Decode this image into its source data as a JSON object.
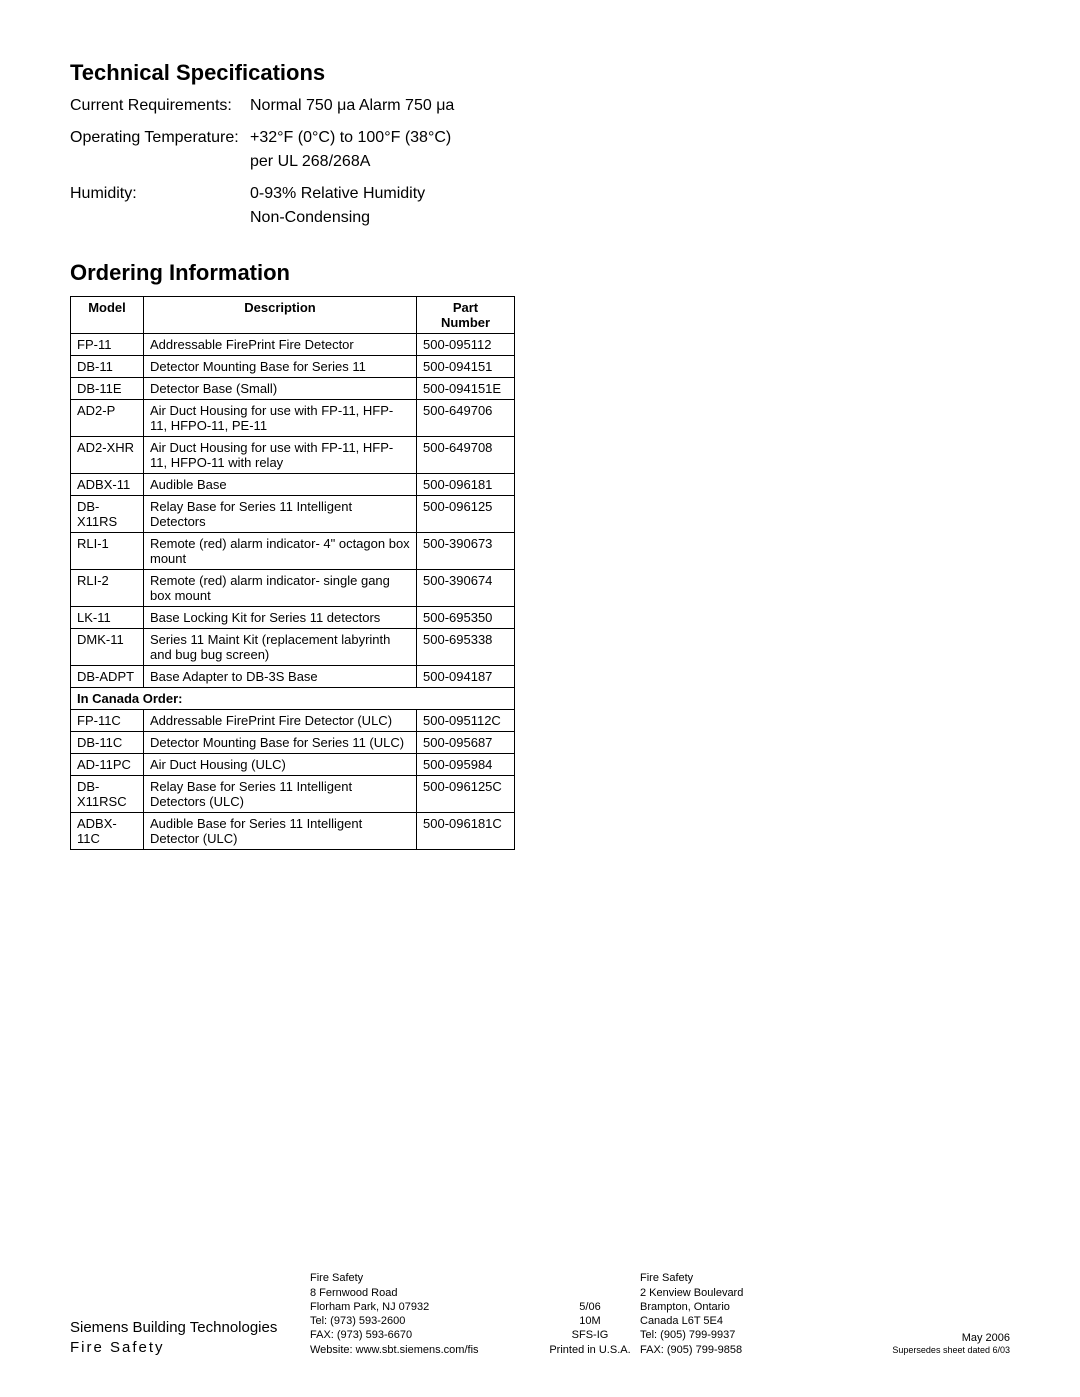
{
  "tech_specs": {
    "heading": "Technical Specifications",
    "rows": [
      {
        "label": "Current Requirements:",
        "value": "Normal  750 μa Alarm 750 μa"
      },
      {
        "label": "Operating Temperature:",
        "value": "+32°F (0°C) to 100°F (38°C)\nper UL 268/268A"
      },
      {
        "label": "Humidity:",
        "value": "0-93% Relative Humidity\nNon-Condensing"
      }
    ]
  },
  "ordering": {
    "heading": "Ordering Information",
    "columns": [
      "Model",
      "Description",
      "Part\nNumber"
    ],
    "rows": [
      {
        "model": "FP-11",
        "desc": "Addressable FirePrint Fire Detector",
        "part": "500-095112"
      },
      {
        "model": "DB-11",
        "desc": "Detector Mounting Base for Series 11",
        "part": "500-094151"
      },
      {
        "model": "DB-11E",
        "desc": "Detector Base (Small)",
        "part": "500-094151E"
      },
      {
        "model": "AD2-P",
        "desc": "Air Duct Housing for use with FP-11, HFP-11, HFPO-11, PE-11",
        "part": "500-649706"
      },
      {
        "model": "AD2-XHR",
        "desc": "Air Duct Housing for use with FP-11, HFP-11, HFPO-11 with relay",
        "part": "500-649708"
      },
      {
        "model": "ADBX-11",
        "desc": "Audible Base",
        "part": "500-096181"
      },
      {
        "model": "DB-X11RS",
        "desc": "Relay Base for Series 11 Intelligent Detectors",
        "part": "500-096125"
      },
      {
        "model": "RLI-1",
        "desc": "Remote (red) alarm indicator- 4\" octagon box mount",
        "part": "500-390673"
      },
      {
        "model": "RLI-2",
        "desc": "Remote (red) alarm indicator- single gang box mount",
        "part": "500-390674"
      },
      {
        "model": "LK-11",
        "desc": "Base Locking Kit for Series 11 detectors",
        "part": "500-695350"
      },
      {
        "model": "DMK-11",
        "desc": "Series 11 Maint Kit (replacement labyrinth and bug bug screen)",
        "part": "500-695338"
      },
      {
        "model": "DB-ADPT",
        "desc": "Base Adapter to DB-3S Base",
        "part": "500-094187"
      }
    ],
    "section_label": "In Canada Order:",
    "rows2": [
      {
        "model": "FP-11C",
        "desc": "Addressable FirePrint Fire Detector (ULC)",
        "part": "500-095112C"
      },
      {
        "model": "DB-11C",
        "desc": "Detector Mounting Base for Series 11 (ULC)",
        "part": "500-095687"
      },
      {
        "model": "AD-11PC",
        "desc": "Air Duct Housing (ULC)",
        "part": "500-095984"
      },
      {
        "model": "DB-X11RSC",
        "desc": "Relay Base for Series 11 Intelligent Detectors (ULC)",
        "part": "500-096125C"
      },
      {
        "model": "ADBX-11C",
        "desc": "Audible Base for Series 11 Intelligent Detector (ULC)",
        "part": "500-096181C"
      }
    ]
  },
  "footer": {
    "company": "Siemens Building Technologies",
    "division": "Fire Safety",
    "addr1": {
      "name": "Fire Safety",
      "street": "8 Fernwood Road",
      "city": "Florham Park, NJ 07932",
      "tel": "Tel: (973) 593-2600",
      "fax": "FAX: (973) 593-6670",
      "web": "Website: www.sbt.siemens.com/fis"
    },
    "mid": {
      "l1": "5/06",
      "l2": "10M",
      "l3": "SFS-IG",
      "l4": "Printed in U.S.A."
    },
    "addr2": {
      "name": "Fire Safety",
      "street": "2 Kenview Boulevard",
      "city": "Brampton, Ontario",
      "country": "Canada L6T 5E4",
      "tel": "Tel: (905) 799-9937",
      "fax": "FAX: (905) 799-9858"
    },
    "right": {
      "date": "May 2006",
      "supersedes": "Supersedes sheet dated 6/03"
    }
  }
}
